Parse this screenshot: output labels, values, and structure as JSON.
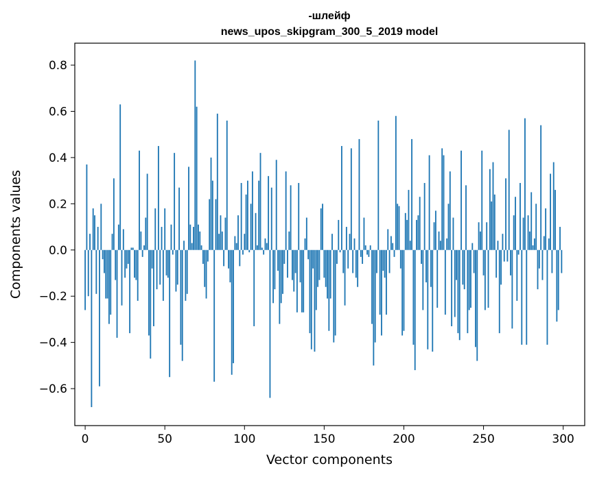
{
  "chart_data": {
    "type": "bar",
    "title_line1": "-шлейф",
    "title_line2": "news_upos_skipgram_300_5_2019 model",
    "xlabel": "Vector components",
    "ylabel": "Components values",
    "xlim": [
      -6.5,
      313.5
    ],
    "ylim": [
      -0.76,
      0.895
    ],
    "x_ticks": [
      0,
      50,
      100,
      150,
      200,
      250,
      300
    ],
    "x_tick_labels": [
      "0",
      "50",
      "100",
      "150",
      "200",
      "250",
      "300"
    ],
    "y_ticks": [
      -0.6,
      -0.4,
      -0.2,
      0.0,
      0.2,
      0.4,
      0.6,
      0.8
    ],
    "y_tick_labels": [
      "−0.6",
      "−0.4",
      "−0.2",
      "0.0",
      "0.2",
      "0.4",
      "0.6",
      "0.8"
    ],
    "grid": false,
    "bar_color": "#1f77b4",
    "values": [
      -0.26,
      0.37,
      -0.2,
      0.07,
      -0.68,
      0.18,
      0.15,
      -0.19,
      0.1,
      -0.59,
      0.2,
      -0.04,
      -0.1,
      -0.21,
      -0.21,
      -0.32,
      -0.28,
      0.07,
      0.31,
      -0.13,
      -0.38,
      0.11,
      0.63,
      -0.24,
      0.09,
      -0.12,
      -0.08,
      -0.06,
      -0.36,
      0.01,
      0.01,
      -0.12,
      -0.13,
      -0.22,
      0.43,
      0.08,
      -0.03,
      0.02,
      0.14,
      0.33,
      -0.37,
      -0.47,
      -0.08,
      -0.33,
      0.18,
      -0.17,
      0.45,
      -0.15,
      0.1,
      -0.22,
      0.18,
      -0.11,
      -0.12,
      -0.55,
      0.11,
      -0.02,
      0.42,
      -0.18,
      -0.15,
      0.27,
      -0.41,
      -0.48,
      0.04,
      -0.22,
      -0.19,
      0.36,
      0.11,
      0.03,
      0.1,
      0.82,
      0.62,
      0.11,
      0.08,
      0.02,
      -0.06,
      -0.16,
      -0.21,
      -0.05,
      0.22,
      0.4,
      0.3,
      -0.57,
      0.22,
      0.59,
      0.07,
      0.15,
      0.08,
      -0.07,
      0.14,
      0.56,
      -0.08,
      -0.14,
      -0.54,
      -0.49,
      0.06,
      0.03,
      0.15,
      -0.07,
      0.29,
      -0.02,
      0.07,
      0.24,
      0.3,
      -0.01,
      0.2,
      0.34,
      -0.33,
      0.16,
      0.02,
      0.3,
      0.42,
      0.01,
      -0.02,
      0.05,
      0.03,
      0.32,
      -0.64,
      0.27,
      -0.23,
      -0.17,
      0.39,
      -0.09,
      -0.32,
      -0.23,
      -0.19,
      -0.06,
      0.34,
      -0.12,
      0.08,
      0.28,
      -0.13,
      -0.18,
      -0.1,
      -0.27,
      0.29,
      -0.14,
      -0.27,
      -0.27,
      0.05,
      0.14,
      -0.04,
      -0.36,
      -0.43,
      -0.08,
      -0.44,
      -0.26,
      -0.16,
      -0.13,
      0.18,
      0.2,
      -0.12,
      -0.16,
      -0.21,
      -0.35,
      -0.21,
      0.07,
      -0.4,
      -0.37,
      -0.06,
      0.13,
      -0.01,
      0.45,
      -0.1,
      -0.24,
      0.1,
      -0.08,
      0.07,
      0.44,
      -0.1,
      0.05,
      -0.12,
      -0.16,
      0.48,
      -0.03,
      -0.06,
      0.14,
      0.02,
      -0.02,
      -0.03,
      0.02,
      -0.32,
      -0.5,
      -0.4,
      -0.1,
      0.56,
      -0.28,
      -0.37,
      -0.09,
      -0.12,
      -0.28,
      0.09,
      -0.1,
      0.06,
      0.03,
      -0.03,
      0.58,
      0.2,
      0.19,
      -0.08,
      -0.37,
      -0.35,
      0.16,
      0.13,
      0.26,
      0.04,
      0.48,
      -0.41,
      -0.52,
      0.13,
      0.15,
      0.23,
      -0.06,
      -0.26,
      0.29,
      -0.14,
      -0.43,
      0.41,
      -0.16,
      -0.44,
      0.12,
      0.17,
      -0.25,
      0.08,
      0.04,
      0.44,
      0.41,
      -0.28,
      0.05,
      0.2,
      0.34,
      -0.33,
      0.14,
      -0.29,
      -0.13,
      -0.36,
      -0.39,
      0.43,
      -0.15,
      -0.17,
      0.28,
      -0.36,
      -0.26,
      -0.25,
      0.03,
      -0.1,
      -0.42,
      -0.48,
      0.12,
      0.08,
      0.43,
      -0.11,
      -0.26,
      0.12,
      -0.25,
      0.35,
      0.21,
      0.38,
      0.24,
      -0.12,
      0.04,
      -0.36,
      -0.15,
      0.07,
      -0.05,
      0.31,
      -0.05,
      0.52,
      -0.11,
      -0.34,
      0.15,
      0.23,
      -0.22,
      -0.02,
      0.29,
      -0.41,
      0.14,
      0.57,
      -0.41,
      0.15,
      0.08,
      0.25,
      0.02,
      0.05,
      0.2,
      -0.17,
      -0.08,
      0.54,
      -0.13,
      0.06,
      0.18,
      -0.41,
      0.05,
      0.33,
      -0.1,
      0.38,
      0.26,
      -0.31,
      -0.26,
      0.1,
      -0.1
    ]
  }
}
